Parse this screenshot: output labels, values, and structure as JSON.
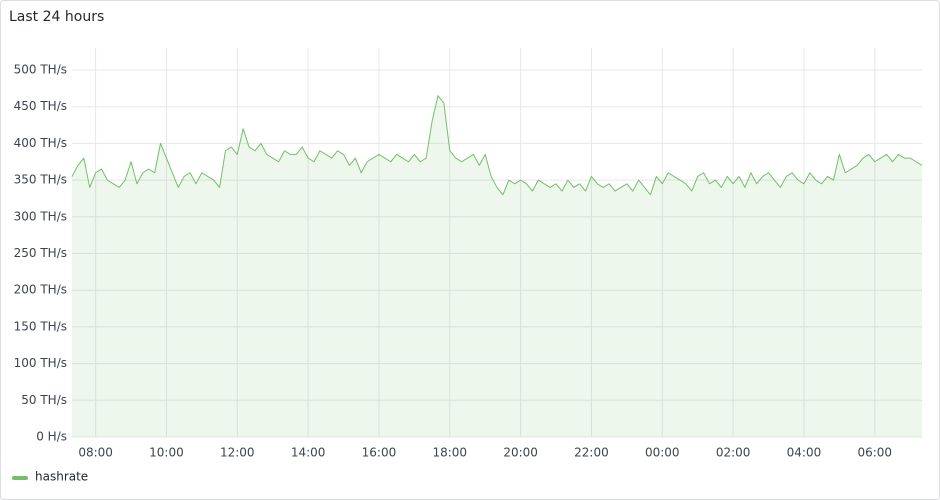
{
  "chart_data": {
    "type": "line",
    "title": "Last 24 hours",
    "x": [
      "07:20",
      "07:30",
      "07:40",
      "07:50",
      "08:00",
      "08:10",
      "08:20",
      "08:30",
      "08:40",
      "08:50",
      "09:00",
      "09:10",
      "09:20",
      "09:30",
      "09:40",
      "09:50",
      "10:00",
      "10:10",
      "10:20",
      "10:30",
      "10:40",
      "10:50",
      "11:00",
      "11:10",
      "11:20",
      "11:30",
      "11:40",
      "11:50",
      "12:00",
      "12:10",
      "12:20",
      "12:30",
      "12:40",
      "12:50",
      "13:00",
      "13:10",
      "13:20",
      "13:30",
      "13:40",
      "13:50",
      "14:00",
      "14:10",
      "14:20",
      "14:30",
      "14:40",
      "14:50",
      "15:00",
      "15:10",
      "15:20",
      "15:30",
      "15:40",
      "15:50",
      "16:00",
      "16:10",
      "16:20",
      "16:30",
      "16:40",
      "16:50",
      "17:00",
      "17:10",
      "17:20",
      "17:30",
      "17:40",
      "17:50",
      "18:00",
      "18:10",
      "18:20",
      "18:30",
      "18:40",
      "18:50",
      "19:00",
      "19:10",
      "19:20",
      "19:30",
      "19:40",
      "19:50",
      "20:00",
      "20:10",
      "20:20",
      "20:30",
      "20:40",
      "20:50",
      "21:00",
      "21:10",
      "21:20",
      "21:30",
      "21:40",
      "21:50",
      "22:00",
      "22:10",
      "22:20",
      "22:30",
      "22:40",
      "22:50",
      "23:00",
      "23:10",
      "23:20",
      "23:30",
      "23:40",
      "23:50",
      "00:00",
      "00:10",
      "00:20",
      "00:30",
      "00:40",
      "00:50",
      "01:00",
      "01:10",
      "01:20",
      "01:30",
      "01:40",
      "01:50",
      "02:00",
      "02:10",
      "02:20",
      "02:30",
      "02:40",
      "02:50",
      "03:00",
      "03:10",
      "03:20",
      "03:30",
      "03:40",
      "03:50",
      "04:00",
      "04:10",
      "04:20",
      "04:30",
      "04:40",
      "04:50",
      "05:00",
      "05:10",
      "05:20",
      "05:30",
      "05:40",
      "05:50",
      "06:00",
      "06:10",
      "06:20",
      "06:30",
      "06:40",
      "06:50",
      "07:00",
      "07:10",
      "07:20"
    ],
    "series": [
      {
        "name": "hashrate",
        "color": "#73bf69",
        "values": [
          355,
          370,
          380,
          340,
          360,
          365,
          350,
          345,
          340,
          350,
          375,
          345,
          360,
          365,
          360,
          400,
          380,
          360,
          340,
          355,
          360,
          345,
          360,
          355,
          350,
          340,
          390,
          395,
          385,
          420,
          395,
          390,
          400,
          385,
          380,
          375,
          390,
          385,
          385,
          395,
          380,
          375,
          390,
          385,
          380,
          390,
          385,
          370,
          380,
          360,
          375,
          380,
          385,
          380,
          375,
          385,
          380,
          375,
          385,
          375,
          380,
          430,
          465,
          455,
          390,
          380,
          375,
          380,
          385,
          370,
          385,
          355,
          340,
          330,
          350,
          345,
          350,
          345,
          335,
          350,
          345,
          340,
          345,
          335,
          350,
          340,
          345,
          335,
          355,
          345,
          340,
          345,
          335,
          340,
          345,
          335,
          350,
          340,
          330,
          355,
          345,
          360,
          355,
          350,
          345,
          335,
          355,
          360,
          345,
          350,
          340,
          355,
          345,
          355,
          340,
          360,
          345,
          355,
          360,
          350,
          340,
          355,
          360,
          350,
          345,
          360,
          350,
          345,
          355,
          350,
          385,
          360,
          365,
          370,
          380,
          385,
          375,
          380,
          385,
          375,
          385,
          380,
          380,
          375,
          370
        ]
      }
    ],
    "xticks": [
      "08:00",
      "10:00",
      "12:00",
      "14:00",
      "16:00",
      "18:00",
      "20:00",
      "22:00",
      "00:00",
      "02:00",
      "04:00",
      "06:00"
    ],
    "ylim": [
      0,
      500
    ],
    "yticks": [
      {
        "value": 0,
        "label": "0 H/s"
      },
      {
        "value": 50,
        "label": "50 TH/s"
      },
      {
        "value": 100,
        "label": "100 TH/s"
      },
      {
        "value": 150,
        "label": "150 TH/s"
      },
      {
        "value": 200,
        "label": "200 TH/s"
      },
      {
        "value": 250,
        "label": "250 TH/s"
      },
      {
        "value": 300,
        "label": "300 TH/s"
      },
      {
        "value": 350,
        "label": "350 TH/s"
      },
      {
        "value": 400,
        "label": "400 TH/s"
      },
      {
        "value": 450,
        "label": "450 TH/s"
      },
      {
        "value": 500,
        "label": "500 TH/s"
      }
    ],
    "grid": true,
    "legend": "bottom-left"
  }
}
